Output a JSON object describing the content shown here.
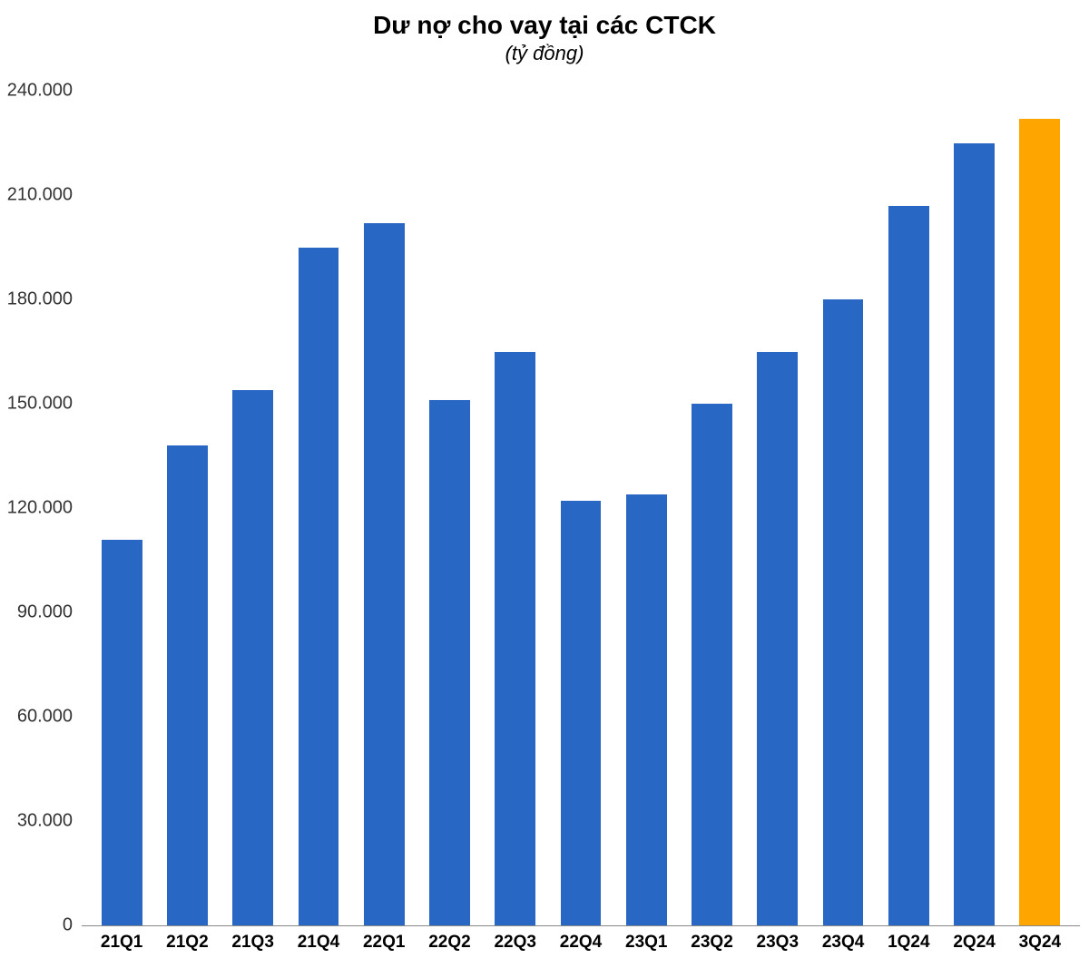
{
  "chart": {
    "type": "bar",
    "title": "Dư nợ cho vay tại các CTCK",
    "subtitle": "(tỷ đồng)",
    "title_fontsize": 28,
    "subtitle_fontsize": 22,
    "subtitle_fontstyle": "italic",
    "background_color": "#ffffff",
    "categories": [
      "21Q1",
      "21Q2",
      "21Q3",
      "21Q4",
      "22Q1",
      "22Q2",
      "22Q3",
      "22Q4",
      "23Q1",
      "23Q2",
      "23Q3",
      "23Q4",
      "1Q24",
      "2Q24",
      "3Q24"
    ],
    "values": [
      111000,
      138000,
      154000,
      195000,
      202000,
      151000,
      165000,
      122000,
      124000,
      150000,
      165000,
      180000,
      207000,
      225000,
      232000
    ],
    "bar_colors": [
      "#2967c4",
      "#2967c4",
      "#2967c4",
      "#2967c4",
      "#2967c4",
      "#2967c4",
      "#2967c4",
      "#2967c4",
      "#2967c4",
      "#2967c4",
      "#2967c4",
      "#2967c4",
      "#2967c4",
      "#2967c4",
      "#ffa500"
    ],
    "ylim": [
      0,
      240000
    ],
    "ytick_step": 30000,
    "yticks": [
      0,
      30000,
      60000,
      90000,
      120000,
      150000,
      180000,
      210000,
      240000
    ],
    "ytick_labels": [
      "0",
      "30.000",
      "60.000",
      "90.000",
      "120.000",
      "150.000",
      "180.000",
      "210.000",
      "240.000"
    ],
    "axis_label_fontsize": 20,
    "xaxis_label_fontsize": 19,
    "xaxis_label_fontweight": "bold",
    "axis_label_color": "#333333",
    "bar_width_ratio": 0.62,
    "grid": false
  }
}
